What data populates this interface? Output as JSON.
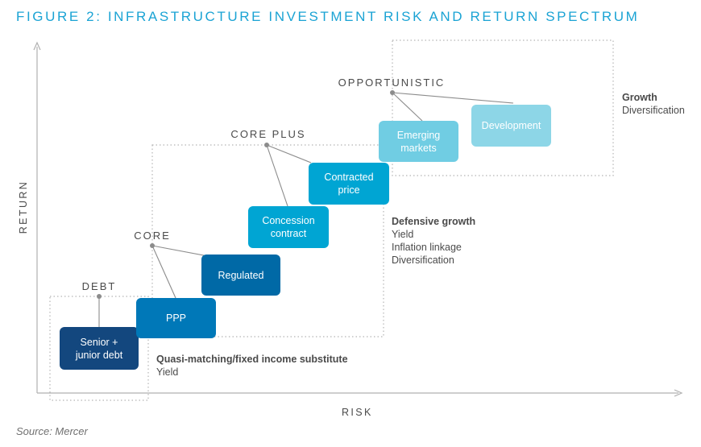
{
  "title": "FIGURE 2: INFRASTRUCTURE INVESTMENT RISK AND RETURN SPECTRUM",
  "source": "Source: Mercer",
  "axes": {
    "x": "RISK",
    "y": "RETURN"
  },
  "tiers": {
    "debt": "DEBT",
    "core": "CORE",
    "core_plus": "CORE PLUS",
    "opportunistic": "OPPORTUNISTIC"
  },
  "boxes": {
    "senior_junior_debt": "Senior +\njunior debt",
    "ppp": "PPP",
    "regulated": "Regulated",
    "concession_contract": "Concession\ncontract",
    "contracted_price": "Contracted\nprice",
    "emerging_markets": "Emerging\nmarkets",
    "development": "Development"
  },
  "descriptions": {
    "quasi": {
      "heading": "Quasi-matching/fixed income substitute",
      "lines": [
        "Yield"
      ]
    },
    "defensive": {
      "heading": "Defensive growth",
      "lines": [
        "Yield",
        "Inflation linkage",
        "Diversification"
      ]
    },
    "growth": {
      "heading": "Growth",
      "lines": [
        "Diversification"
      ]
    }
  },
  "colors": {
    "title": "#1aa3d4",
    "dark_navy": "#13477e",
    "mid_blue": "#0078b8",
    "medium_blue": "#0069a6",
    "teal": "#00a5d3",
    "light_teal": "#70cde3",
    "pale_teal": "#8dd6e7"
  }
}
